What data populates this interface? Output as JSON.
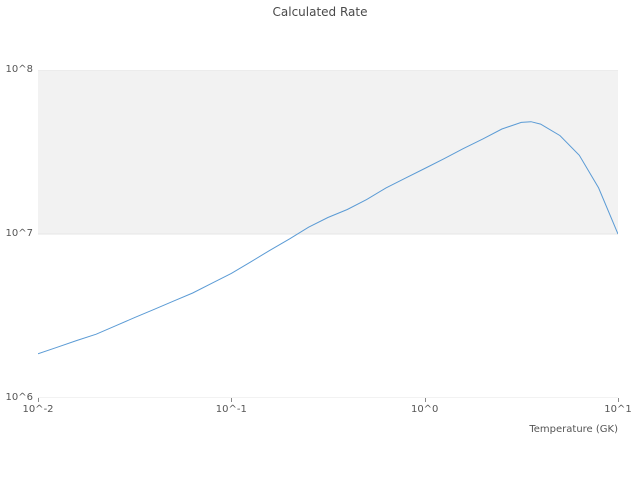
{
  "title": "Calculated Rate",
  "axes": {
    "x_label": "Temperature (GK)",
    "x_ticks": [
      {
        "value": 0.01,
        "label": "10^-2"
      },
      {
        "value": 0.1,
        "label": "10^-1"
      },
      {
        "value": 1.0,
        "label": "10^0"
      },
      {
        "value": 10.0,
        "label": "10^1"
      }
    ],
    "y_ticks": [
      {
        "value": 1000000,
        "label": "10^6"
      },
      {
        "value": 10000000,
        "label": "10^7"
      },
      {
        "value": 100000000,
        "label": "10^8"
      }
    ]
  },
  "colors": {
    "line": "#5b9bd5",
    "band_fill": "#f2f2f2",
    "gridline": "#e6e6e6",
    "text": "#555555",
    "title_text": "#4a4a4a",
    "background": "#ffffff"
  },
  "chart_data": {
    "type": "line",
    "title": "Calculated Rate",
    "xlabel": "Temperature (GK)",
    "ylabel": "",
    "xscale": "log",
    "yscale": "log",
    "xlim": [
      0.01,
      10
    ],
    "ylim": [
      1000000,
      100000000
    ],
    "grid": "horizontal-decades",
    "legend": "none",
    "band": {
      "from": 10000000,
      "to": 100000000,
      "color": "#f2f2f2"
    },
    "series_name": "Calculated Rate",
    "x": [
      0.01,
      0.0126,
      0.0158,
      0.02,
      0.0251,
      0.0316,
      0.0398,
      0.0501,
      0.0631,
      0.0794,
      0.1,
      0.126,
      0.158,
      0.2,
      0.251,
      0.316,
      0.398,
      0.501,
      0.631,
      0.794,
      1.0,
      1.26,
      1.58,
      2.0,
      2.51,
      3.16,
      3.55,
      3.98,
      5.01,
      6.31,
      7.94,
      10.0
    ],
    "y": [
      1860000,
      2040000,
      2240000,
      2450000,
      2750000,
      3090000,
      3470000,
      3890000,
      4370000,
      5010000,
      5750000,
      6760000,
      7940000,
      9330000,
      11000000,
      12600000,
      14100000,
      16200000,
      19100000,
      21900000,
      25100000,
      28800000,
      33100000,
      38000000,
      43700000,
      47900000,
      48400000,
      46800000,
      39800000,
      30200000,
      19100000,
      10000000
    ]
  }
}
